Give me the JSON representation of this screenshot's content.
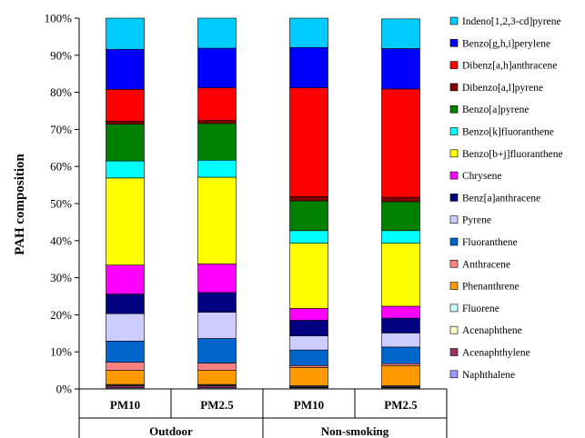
{
  "chart_data": {
    "type": "bar",
    "stacked": true,
    "ylabel": "PAH composition",
    "xlabel": "",
    "ylim": [
      0,
      100
    ],
    "yticks": [
      "0%",
      "10%",
      "20%",
      "30%",
      "40%",
      "50%",
      "60%",
      "70%",
      "80%",
      "90%",
      "100%"
    ],
    "categories": [
      "PM10",
      "PM2.5",
      "PM10",
      "PM2.5"
    ],
    "groups": [
      {
        "label": "Outdoor",
        "categories": [
          0,
          1
        ]
      },
      {
        "label": "Non-smoking",
        "categories": [
          2,
          3
        ]
      }
    ],
    "legend_position": "right",
    "series": [
      {
        "name": "Naphthalene",
        "color": "#9999ff",
        "values": [
          0.3,
          0.3,
          0.3,
          0.3
        ]
      },
      {
        "name": "Acenaphthylene",
        "color": "#993366",
        "values": [
          0.5,
          0.5,
          0.2,
          0.2
        ]
      },
      {
        "name": "Acenaphthene",
        "color": "#ffffcc",
        "values": [
          0.2,
          0.2,
          0.2,
          0.2
        ]
      },
      {
        "name": "Fluorene",
        "color": "#ccffff",
        "values": [
          0.2,
          0.2,
          0.2,
          0.2
        ]
      },
      {
        "name": "Phenanthrene",
        "color": "#ff9900",
        "values": [
          3.8,
          3.8,
          4.9,
          5.4
        ]
      },
      {
        "name": "Anthracene",
        "color": "#ff8080",
        "values": [
          2.2,
          2.0,
          0.5,
          0.5
        ]
      },
      {
        "name": "Fluoranthene",
        "color": "#0066cc",
        "values": [
          5.7,
          6.6,
          4.2,
          4.5
        ]
      },
      {
        "name": "Pyrene",
        "color": "#ccccff",
        "values": [
          7.4,
          7.1,
          3.8,
          3.8
        ]
      },
      {
        "name": "Benz[a]anthracene",
        "color": "#000080",
        "values": [
          5.3,
          5.3,
          4.2,
          4.0
        ]
      },
      {
        "name": "Chrysene",
        "color": "#ff00ff",
        "values": [
          7.8,
          7.7,
          3.2,
          3.2
        ]
      },
      {
        "name": "Benzo[b+j]fluoranthene",
        "color": "#ffff00",
        "values": [
          23.5,
          23.4,
          17.6,
          17.0
        ]
      },
      {
        "name": "Benzo[k]fluoranthene",
        "color": "#00ffff",
        "values": [
          4.6,
          4.6,
          3.4,
          3.4
        ]
      },
      {
        "name": "Benzo[a]pyrene",
        "color": "#008000",
        "values": [
          9.9,
          9.9,
          8.0,
          7.8
        ]
      },
      {
        "name": "Dibenzo[a,l]pyrene",
        "color": "#800000",
        "values": [
          0.8,
          0.8,
          1.2,
          1.2
        ]
      },
      {
        "name": "Dibenz[a,h]anthracene",
        "color": "#ff0000",
        "values": [
          8.6,
          8.8,
          29.3,
          29.2
        ]
      },
      {
        "name": "Benzo[g,h,i]perylene",
        "color": "#0000ff",
        "values": [
          10.8,
          10.7,
          10.9,
          10.9
        ]
      },
      {
        "name": "Indeno[1,2,3-cd]pyrene",
        "color": "#00ccff",
        "values": [
          8.4,
          8.1,
          7.9,
          8.0
        ]
      }
    ]
  }
}
